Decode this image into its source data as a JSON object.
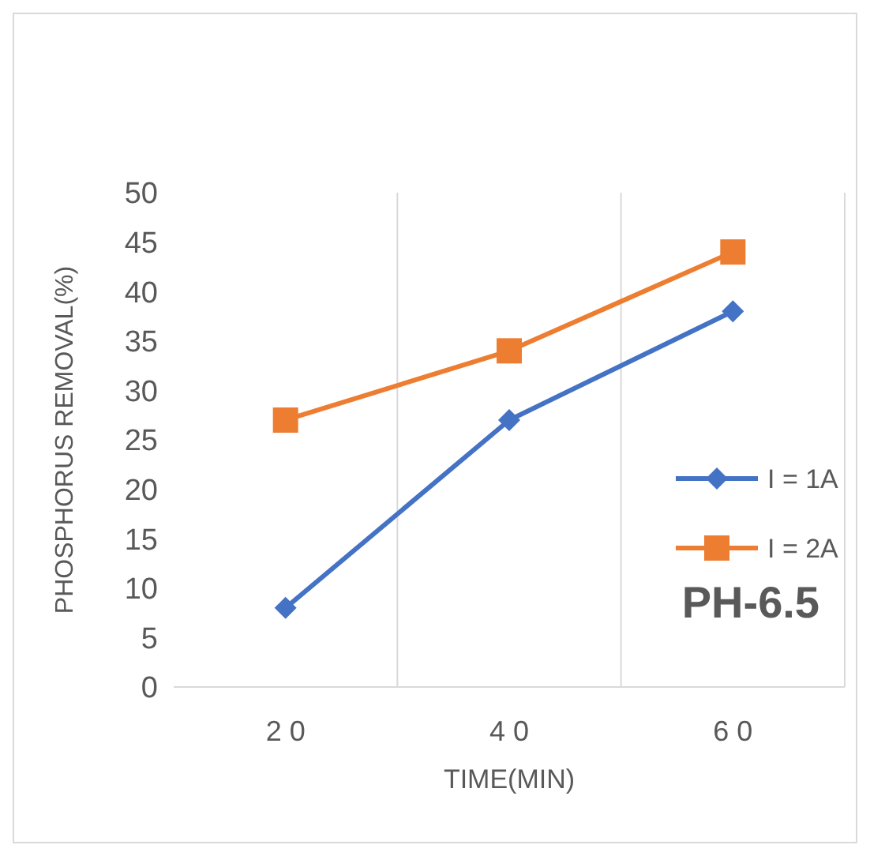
{
  "chart_data": {
    "type": "line",
    "xlabel": "TIME(MIN)",
    "ylabel": "PHOSPHORUS REMOVAL(%)",
    "categories": [
      "2 0",
      "4 0",
      "6 0"
    ],
    "series": [
      {
        "name": "I = 1A",
        "color": "#4472c4",
        "marker": "diamond",
        "values": [
          8,
          27,
          38
        ]
      },
      {
        "name": "I = 2A",
        "color": "#ed7d31",
        "marker": "square",
        "values": [
          27,
          34,
          44
        ]
      }
    ],
    "ylim": [
      0,
      50
    ],
    "yticks": [
      0,
      5,
      10,
      15,
      20,
      25,
      30,
      35,
      40,
      45,
      50
    ],
    "grid": "x",
    "legend": "right",
    "annotations": [
      "PH-6.5"
    ]
  }
}
